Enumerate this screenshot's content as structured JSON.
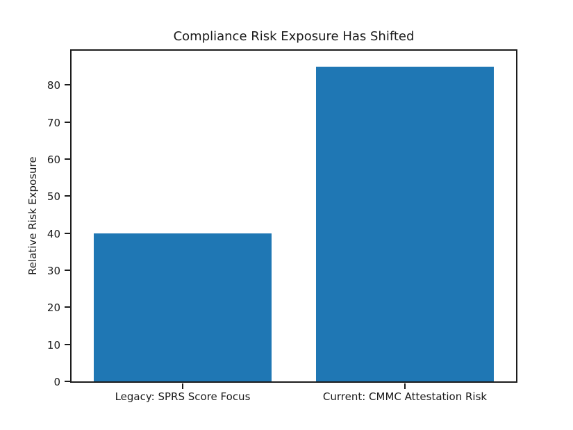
{
  "figure": {
    "background_color": "#ffffff",
    "text_color": "#1a1a1a"
  },
  "chart_data": {
    "type": "bar",
    "title": "Compliance Risk Exposure Has Shifted",
    "xlabel": "",
    "ylabel": "Relative Risk Exposure",
    "categories": [
      "Legacy: SPRS Score Focus",
      "Current: CMMC Attestation Risk"
    ],
    "values": [
      40,
      85
    ],
    "ylim": [
      0,
      89.25
    ],
    "yticks": [
      0,
      10,
      20,
      30,
      40,
      50,
      60,
      70,
      80
    ],
    "bar_color": "#1f77b4",
    "bar_width_fraction": 0.8,
    "grid": false,
    "legend": "none"
  }
}
